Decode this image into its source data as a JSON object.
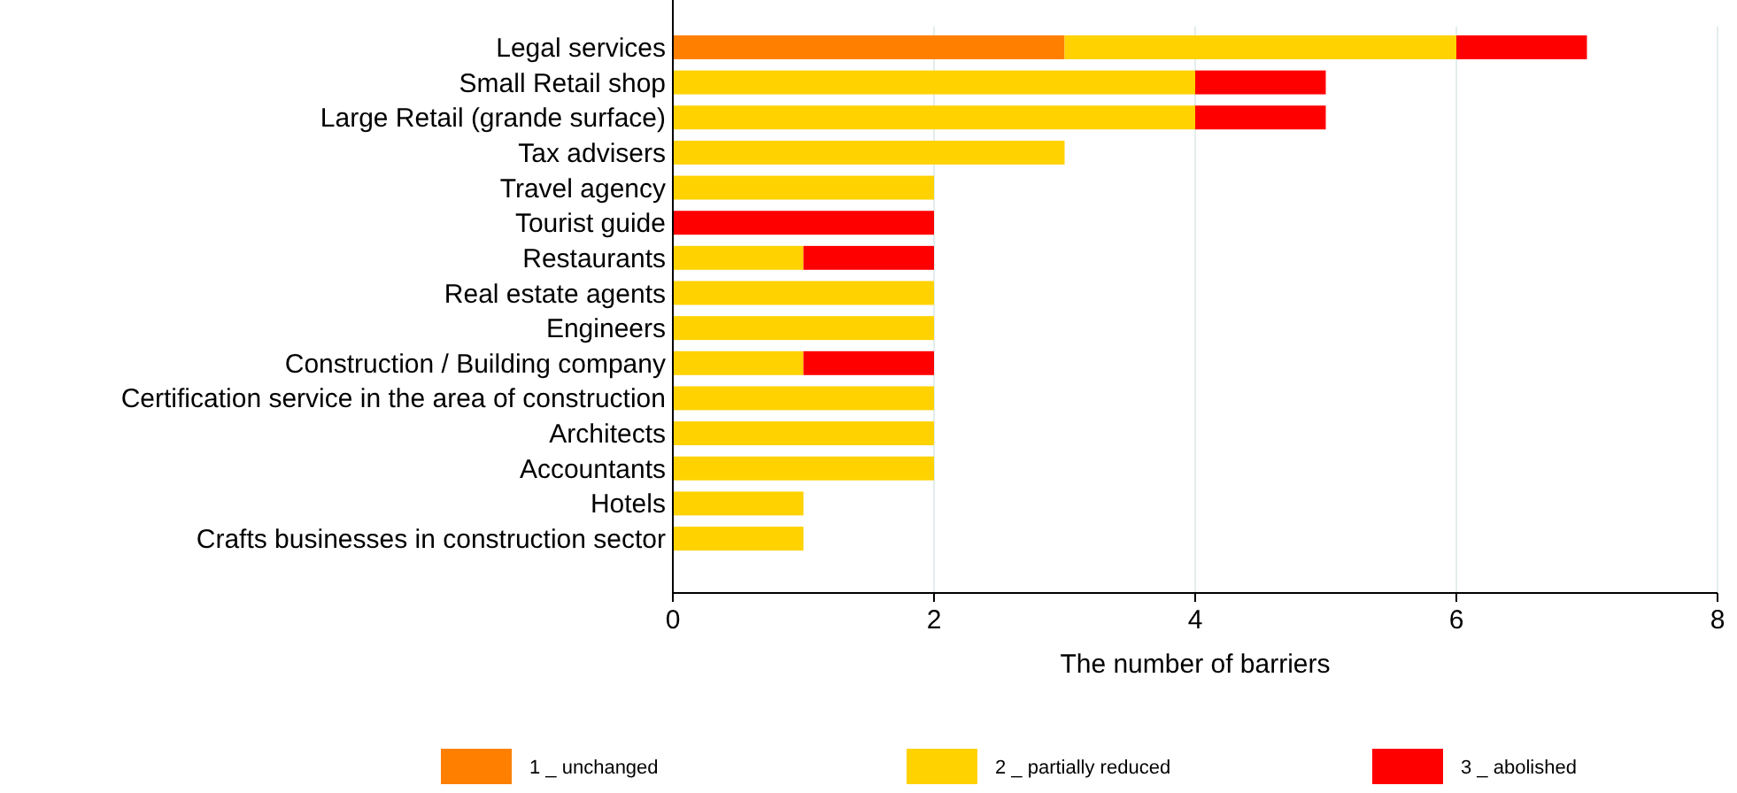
{
  "chart_data": {
    "type": "bar",
    "orientation": "horizontal",
    "stacked": true,
    "xlabel": "The number of barriers",
    "categories": [
      "Legal services",
      "Small Retail shop",
      "Large Retail (grande surface)",
      "Tax advisers",
      "Travel agency",
      "Tourist guide",
      "Restaurants",
      "Real estate agents",
      "Engineers",
      "Construction / Building company",
      "Certification service in the area of construction",
      "Architects",
      "Accountants",
      "Hotels",
      "Crafts businesses in construction sector"
    ],
    "series": [
      {
        "name": "1 _ unchanged",
        "color": "#ff7f00",
        "values": [
          3,
          0,
          0,
          0,
          0,
          0,
          0,
          0,
          0,
          0,
          0,
          0,
          0,
          0,
          0
        ]
      },
      {
        "name": "2 _ partially reduced",
        "color": "#ffd200",
        "values": [
          3,
          4,
          4,
          3,
          2,
          0,
          1,
          2,
          2,
          1,
          2,
          2,
          2,
          1,
          1
        ]
      },
      {
        "name": "3 _ abolished",
        "color": "#ff0000",
        "values": [
          1,
          1,
          1,
          0,
          0,
          2,
          1,
          0,
          0,
          1,
          0,
          0,
          0,
          0,
          0
        ]
      }
    ],
    "xlim": [
      0,
      8
    ],
    "xticks": [
      0,
      2,
      4,
      6,
      8
    ],
    "grid": "x",
    "legend": "bottom"
  }
}
